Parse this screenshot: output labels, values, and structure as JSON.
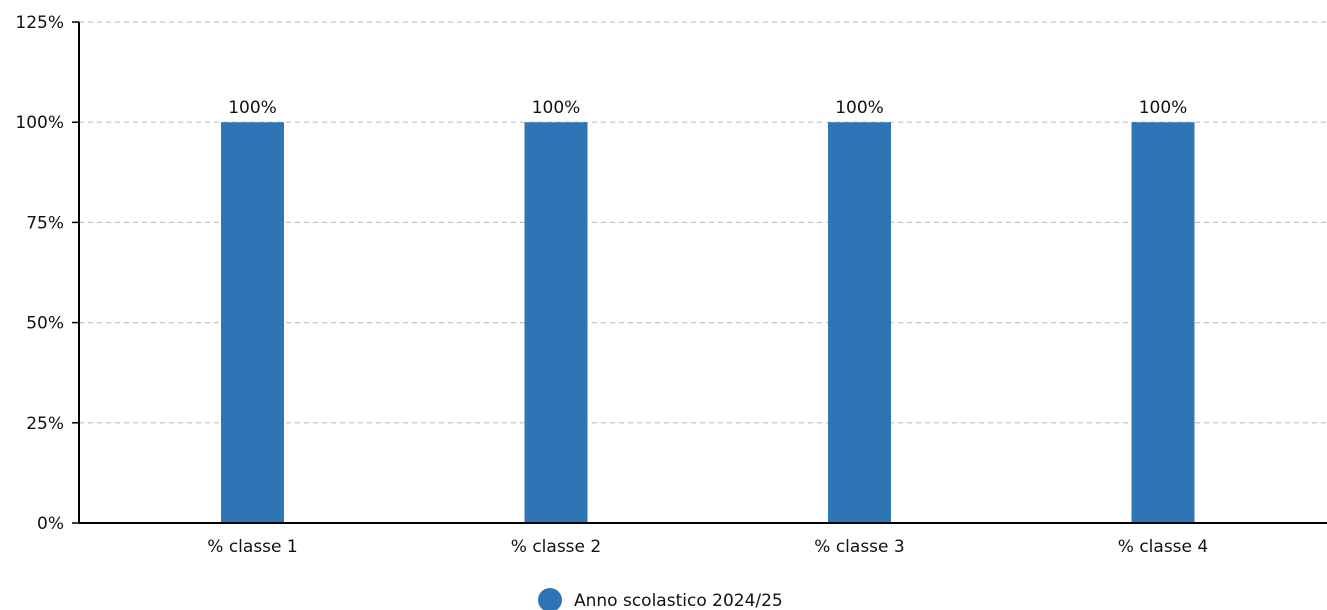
{
  "chart_data": {
    "type": "bar",
    "title": "",
    "xlabel": "",
    "ylabel": "",
    "categories": [
      "% classe 1",
      "% classe 2",
      "% classe 3",
      "% classe 4"
    ],
    "series": [
      {
        "name": "Anno scolastico 2024/25",
        "color": "#2f75b5",
        "values": [
          100,
          100,
          100,
          100
        ],
        "data_labels": [
          "100%",
          "100%",
          "100%",
          "100%"
        ]
      }
    ],
    "ylim": [
      0,
      125
    ],
    "y_ticks": [
      0,
      25,
      50,
      75,
      100,
      125
    ],
    "y_tick_labels": [
      "0%",
      "25%",
      "50%",
      "75%",
      "100%",
      "125%"
    ],
    "grid": true,
    "legend_position": "bottom-center"
  }
}
